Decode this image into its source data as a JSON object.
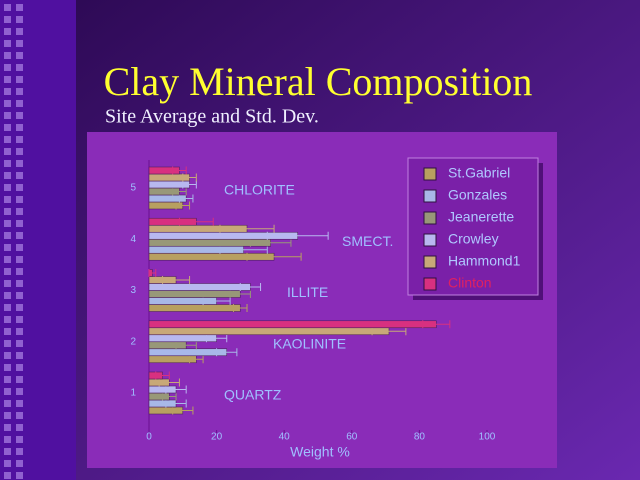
{
  "chart_data": {
    "type": "bar",
    "orientation": "horizontal",
    "title": "Clay Mineral Composition",
    "subtitle": "Site Average and Std. Dev.",
    "x_label": "Weight %",
    "categories": [
      "1",
      "2",
      "3",
      "4",
      "5"
    ],
    "category_labels": [
      "QUARTZ",
      "KAOLINITE",
      "ILLITE",
      "SMECT.",
      "CHLORITE"
    ],
    "xlim": [
      0,
      100
    ],
    "xticks": [
      0,
      20,
      40,
      60,
      80,
      100
    ],
    "series": [
      {
        "name": "St.Gabriel",
        "color": "#b8a060",
        "values": [
          10,
          14,
          27,
          37,
          10
        ],
        "errors": [
          3,
          2,
          2,
          8,
          2
        ]
      },
      {
        "name": "Gonzales",
        "color": "#a8b8e8",
        "values": [
          8,
          23,
          20,
          28,
          11
        ],
        "errors": [
          3,
          3,
          4,
          7,
          2
        ]
      },
      {
        "name": "Jeanerette",
        "color": "#989878",
        "values": [
          6,
          11,
          27,
          36,
          9
        ],
        "errors": [
          2,
          3,
          3,
          6,
          2
        ]
      },
      {
        "name": "Crowley",
        "color": "#b8b8f0",
        "values": [
          8,
          20,
          30,
          44,
          12
        ],
        "errors": [
          3,
          3,
          3,
          9,
          2
        ]
      },
      {
        "name": "Hammond1",
        "color": "#c8a878",
        "values": [
          6,
          71,
          8,
          29,
          12
        ],
        "errors": [
          3,
          5,
          4,
          8,
          2
        ]
      },
      {
        "name": "Clinton",
        "color": "#d83080",
        "values": [
          4,
          85,
          1,
          14,
          9
        ],
        "errors": [
          2,
          4,
          1,
          5,
          2
        ]
      }
    ]
  }
}
